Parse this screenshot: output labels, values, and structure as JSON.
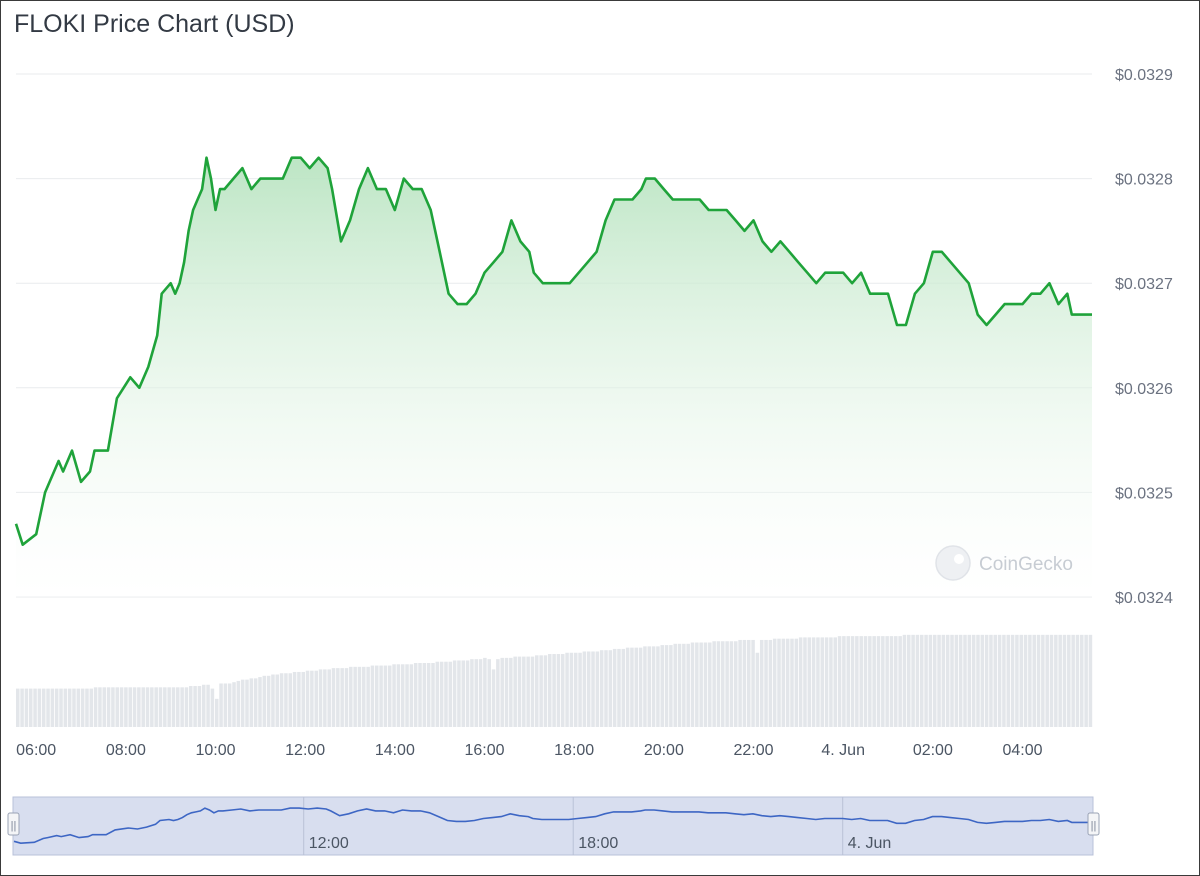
{
  "chart_title": "FLOKI Price Chart (USD)",
  "watermark": "CoinGecko",
  "colors": {
    "line": "#1fa33a",
    "area_top": "#bfe6c6",
    "volume": "#e3e6ea",
    "navigator_bg": "#d6dcef",
    "navigator_line": "#3d66c4",
    "grid": "#e9ebee"
  },
  "chart_data": {
    "type": "area",
    "title": "FLOKI Price Chart (USD)",
    "ylim": [
      0.0324,
      0.0329
    ],
    "yticks": [
      "$0.0324",
      "$0.0325",
      "$0.0326",
      "$0.0327",
      "$0.0328",
      "$0.0329"
    ],
    "ytick_values": [
      0.0324,
      0.0325,
      0.0326,
      0.0327,
      0.0328,
      0.0329
    ],
    "xlim": [
      5.55,
      29.55
    ],
    "xticks": [
      "06:00",
      "08:00",
      "10:00",
      "12:00",
      "14:00",
      "16:00",
      "18:00",
      "20:00",
      "22:00",
      "4. Jun",
      "02:00",
      "04:00"
    ],
    "xtick_values": [
      6,
      8,
      10,
      12,
      14,
      16,
      18,
      20,
      22,
      24,
      26,
      28
    ],
    "grid": true,
    "legend": "none",
    "series": [
      {
        "x": [
          5.55,
          5.7,
          6.0,
          6.2,
          6.3,
          6.5,
          6.6,
          6.8,
          7.0,
          7.2,
          7.3,
          7.6,
          7.8,
          8.1,
          8.3,
          8.5,
          8.7,
          8.8,
          9.0,
          9.1,
          9.2,
          9.3,
          9.4,
          9.5,
          9.6,
          9.7,
          9.8,
          9.9,
          10.0,
          10.1,
          10.2,
          10.4,
          10.6,
          10.8,
          11.0,
          11.2,
          11.5,
          11.7,
          11.9,
          12.1,
          12.3,
          12.5,
          12.6,
          12.8,
          13.0,
          13.2,
          13.4,
          13.6,
          13.8,
          14.0,
          14.2,
          14.4,
          14.6,
          14.8,
          15.0,
          15.2,
          15.4,
          15.6,
          15.8,
          16.0,
          16.2,
          16.4,
          16.6,
          16.8,
          17.0,
          17.1,
          17.3,
          17.5,
          17.7,
          17.9,
          18.1,
          18.3,
          18.5,
          18.7,
          18.9,
          19.1,
          19.3,
          19.5,
          19.6,
          19.8,
          20.0,
          20.2,
          20.4,
          20.6,
          20.8,
          21.0,
          21.2,
          21.4,
          21.6,
          21.8,
          22.0,
          22.2,
          22.4,
          22.6,
          22.8,
          23.0,
          23.2,
          23.4,
          23.6,
          23.8,
          24.0,
          24.2,
          24.4,
          24.6,
          24.8,
          25.0,
          25.2,
          25.4,
          25.6,
          25.8,
          26.0,
          26.2,
          26.4,
          26.6,
          26.8,
          27.0,
          27.2,
          27.4,
          27.6,
          27.8,
          28.0,
          28.2,
          28.4,
          28.6,
          28.8,
          29.0,
          29.1,
          29.3,
          29.55
        ],
        "y": [
          0.03247,
          0.03245,
          0.03246,
          0.0325,
          0.03251,
          0.03253,
          0.03252,
          0.03254,
          0.03251,
          0.03252,
          0.03254,
          0.03254,
          0.03259,
          0.03261,
          0.0326,
          0.03262,
          0.03265,
          0.03269,
          0.0327,
          0.03269,
          0.0327,
          0.03272,
          0.03275,
          0.03277,
          0.03278,
          0.03279,
          0.03282,
          0.0328,
          0.03277,
          0.03279,
          0.03279,
          0.0328,
          0.03281,
          0.03279,
          0.0328,
          0.0328,
          0.0328,
          0.03282,
          0.03282,
          0.03281,
          0.03282,
          0.03281,
          0.03279,
          0.03274,
          0.03276,
          0.03279,
          0.03281,
          0.03279,
          0.03279,
          0.03277,
          0.0328,
          0.03279,
          0.03279,
          0.03277,
          0.03273,
          0.03269,
          0.03268,
          0.03268,
          0.03269,
          0.03271,
          0.03272,
          0.03273,
          0.03276,
          0.03274,
          0.03273,
          0.03271,
          0.0327,
          0.0327,
          0.0327,
          0.0327,
          0.03271,
          0.03272,
          0.03273,
          0.03276,
          0.03278,
          0.03278,
          0.03278,
          0.03279,
          0.0328,
          0.0328,
          0.03279,
          0.03278,
          0.03278,
          0.03278,
          0.03278,
          0.03277,
          0.03277,
          0.03277,
          0.03276,
          0.03275,
          0.03276,
          0.03274,
          0.03273,
          0.03274,
          0.03273,
          0.03272,
          0.03271,
          0.0327,
          0.03271,
          0.03271,
          0.03271,
          0.0327,
          0.03271,
          0.03269,
          0.03269,
          0.03269,
          0.03266,
          0.03266,
          0.03269,
          0.0327,
          0.03273,
          0.03273,
          0.03272,
          0.03271,
          0.0327,
          0.03267,
          0.03266,
          0.03267,
          0.03268,
          0.03268,
          0.03268,
          0.03269,
          0.03269,
          0.0327,
          0.03268,
          0.03269,
          0.03267,
          0.03267,
          0.03267
        ]
      }
    ],
    "volume": {
      "count": 244,
      "values": [
        0.3,
        0.3,
        0.3,
        0.3,
        0.3,
        0.3,
        0.3,
        0.3,
        0.3,
        0.3,
        0.3,
        0.3,
        0.3,
        0.3,
        0.3,
        0.3,
        0.3,
        0.3,
        0.31,
        0.31,
        0.31,
        0.31,
        0.31,
        0.31,
        0.31,
        0.31,
        0.31,
        0.31,
        0.31,
        0.31,
        0.31,
        0.31,
        0.31,
        0.31,
        0.31,
        0.31,
        0.31,
        0.31,
        0.31,
        0.31,
        0.32,
        0.32,
        0.32,
        0.33,
        0.33,
        0.3,
        0.22,
        0.34,
        0.34,
        0.34,
        0.35,
        0.36,
        0.37,
        0.37,
        0.38,
        0.38,
        0.39,
        0.4,
        0.4,
        0.41,
        0.41,
        0.42,
        0.42,
        0.42,
        0.43,
        0.43,
        0.43,
        0.44,
        0.44,
        0.44,
        0.45,
        0.45,
        0.45,
        0.46,
        0.46,
        0.46,
        0.46,
        0.47,
        0.47,
        0.47,
        0.47,
        0.47,
        0.48,
        0.48,
        0.48,
        0.48,
        0.48,
        0.49,
        0.49,
        0.49,
        0.49,
        0.49,
        0.5,
        0.5,
        0.5,
        0.5,
        0.5,
        0.51,
        0.51,
        0.51,
        0.51,
        0.52,
        0.52,
        0.52,
        0.52,
        0.53,
        0.53,
        0.53,
        0.54,
        0.53,
        0.45,
        0.53,
        0.54,
        0.54,
        0.54,
        0.55,
        0.55,
        0.55,
        0.55,
        0.55,
        0.56,
        0.56,
        0.56,
        0.57,
        0.57,
        0.57,
        0.57,
        0.58,
        0.58,
        0.58,
        0.58,
        0.59,
        0.59,
        0.59,
        0.59,
        0.6,
        0.6,
        0.6,
        0.61,
        0.61,
        0.61,
        0.62,
        0.62,
        0.62,
        0.62,
        0.63,
        0.63,
        0.63,
        0.63,
        0.64,
        0.64,
        0.64,
        0.65,
        0.65,
        0.65,
        0.65,
        0.66,
        0.66,
        0.66,
        0.66,
        0.66,
        0.67,
        0.67,
        0.67,
        0.67,
        0.67,
        0.67,
        0.68,
        0.68,
        0.68,
        0.68,
        0.58,
        0.68,
        0.68,
        0.68,
        0.69,
        0.69,
        0.69,
        0.69,
        0.69,
        0.69,
        0.7,
        0.7,
        0.7,
        0.7,
        0.7,
        0.7,
        0.7,
        0.7,
        0.7,
        0.71,
        0.71,
        0.71,
        0.71,
        0.71,
        0.71,
        0.71,
        0.71,
        0.71,
        0.71,
        0.71,
        0.71,
        0.71,
        0.71,
        0.71,
        0.72,
        0.72,
        0.72,
        0.72,
        0.72,
        0.72,
        0.72,
        0.72,
        0.72,
        0.72,
        0.72,
        0.72,
        0.72,
        0.72,
        0.72,
        0.72,
        0.72,
        0.72,
        0.72,
        0.72,
        0.72,
        0.72,
        0.72,
        0.72,
        0.72,
        0.72,
        0.72,
        0.72,
        0.72,
        0.72,
        0.72,
        0.72,
        0.72,
        0.72,
        0.72,
        0.72,
        0.72,
        0.72,
        0.72,
        0.72,
        0.72,
        0.72,
        0.72,
        0.72
      ]
    }
  },
  "navigator": {
    "ticks": [
      "12:00",
      "18:00",
      "4. Jun"
    ],
    "tick_values": [
      12,
      18,
      24
    ],
    "handle_symbol": "||"
  }
}
